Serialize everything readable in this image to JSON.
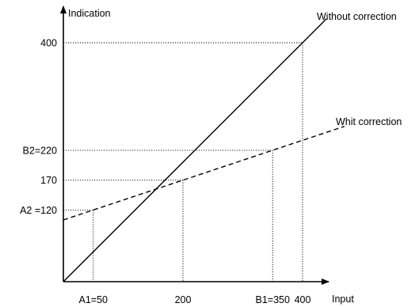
{
  "chart_data": {
    "type": "line",
    "xlabel": "Input",
    "ylabel": "Indication",
    "xlim": [
      0,
      450
    ],
    "ylim": [
      0,
      450
    ],
    "x_tick_labels": [
      {
        "value": 50,
        "label": "A1=50"
      },
      {
        "value": 200,
        "label": "200"
      },
      {
        "value": 350,
        "label": "B1=350"
      },
      {
        "value": 400,
        "label": "400"
      }
    ],
    "y_tick_labels": [
      {
        "value": 120,
        "label": "A2 =120"
      },
      {
        "value": 170,
        "label": "170"
      },
      {
        "value": 220,
        "label": "B2=220"
      },
      {
        "value": 400,
        "label": "400"
      }
    ],
    "series": [
      {
        "name": "Without correction",
        "style": "solid",
        "color": "#000000",
        "x": [
          0,
          440
        ],
        "y": [
          0,
          440
        ]
      },
      {
        "name": "Whit correction",
        "style": "dashed",
        "color": "#000000",
        "x": [
          0,
          470
        ],
        "y": [
          103.33,
          260
        ]
      }
    ],
    "guides": [
      {
        "x": 50,
        "y": 120
      },
      {
        "x": 200,
        "y": 170
      },
      {
        "x": 350,
        "y": 220
      },
      {
        "x": 400,
        "y": 400
      }
    ],
    "grid": false
  }
}
